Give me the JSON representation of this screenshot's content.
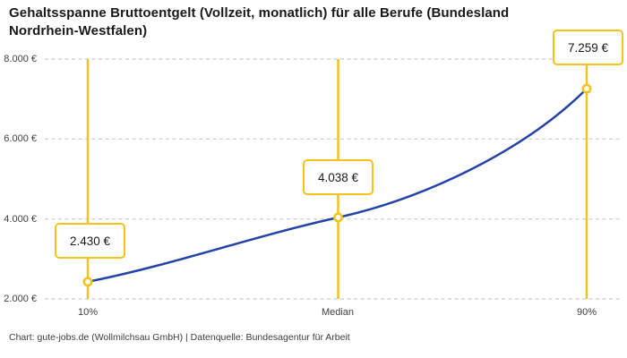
{
  "header": {
    "title": "Gehaltsspanne Bruttoentgelt (Vollzeit, monatlich) für alle Berufe (Bundesland\nNordrhein-Westfalen)"
  },
  "footer": {
    "text": "Chart: gute-jobs.de (Wollmilchsau GmbH) | Datenquelle: Bundesagentur für Arbeit"
  },
  "chart_data": {
    "type": "line",
    "title": "Gehaltsspanne Bruttoentgelt (Vollzeit, monatlich) für alle Berufe (Bundesland Nordrhein-Westfalen)",
    "categories": [
      "10%",
      "Median",
      "90%"
    ],
    "values": [
      2430,
      4038,
      7259
    ],
    "value_labels": [
      "2.430 €",
      "4.038 €",
      "7.259 €"
    ],
    "xlabel": "",
    "ylabel": "",
    "ylim": [
      2000,
      8000
    ],
    "ytick_values": [
      2000,
      4000,
      6000,
      8000
    ],
    "ytick_labels": [
      "2.000 €",
      "4.000 €",
      "6.000 €",
      "8.000 €"
    ],
    "grid": "horizontal-dashed",
    "legend": "none",
    "colors": {
      "line": "#2343A8",
      "accent": "#F5C21A",
      "grid": "#CBCBCB",
      "marker_fill": "#FFFFFF"
    }
  }
}
